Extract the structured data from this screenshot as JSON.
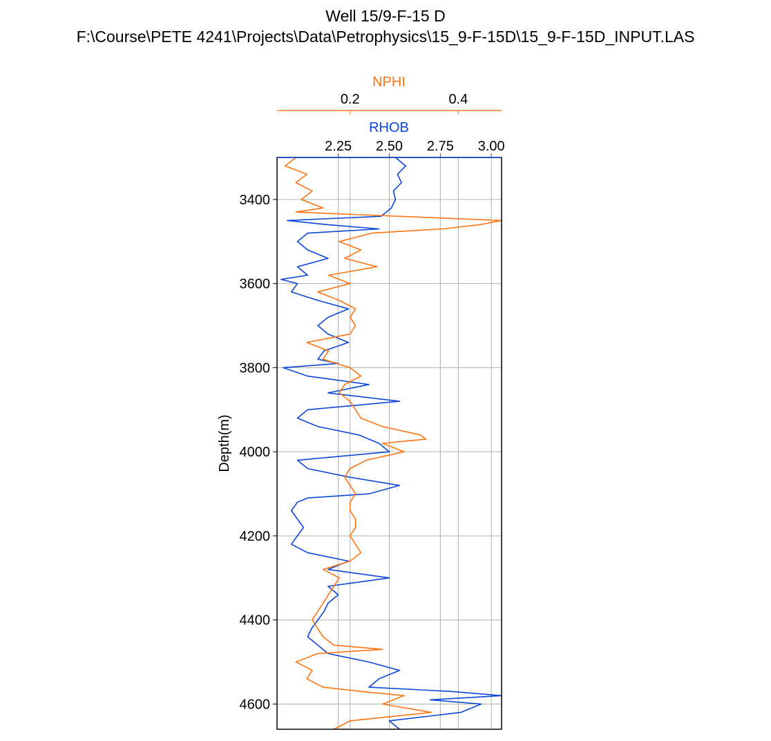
{
  "chart_data": {
    "type": "line",
    "title": "Well 15/9-F-15 D",
    "subtitle": "F:\\Course\\PETE 4241\\Projects\\Data\\Petrophysics\\15_9-F-15D\\15_9-F-15D_INPUT.LAS",
    "ylabel": "Depth(m)",
    "y_inverted": true,
    "ylim": [
      4660,
      3300
    ],
    "yticks": [
      3400,
      3600,
      3800,
      4000,
      4200,
      4400,
      4600
    ],
    "ytick_labels": [
      "3400",
      "3600",
      "3800",
      "4000",
      "4200",
      "4400",
      "4600"
    ],
    "grid": true,
    "axes": [
      {
        "name": "RHOB",
        "label": "RHOB",
        "color": "#0a47d9",
        "xlim": [
          1.95,
          3.05
        ],
        "xticks": [
          2.25,
          2.5,
          2.75,
          3.0
        ],
        "xtick_labels": [
          "2.25",
          "2.50",
          "2.75",
          "3.00"
        ]
      },
      {
        "name": "NPHI",
        "label": "NPHI",
        "color": "#ff7412",
        "xlim": [
          0.065,
          0.48
        ],
        "xticks": [
          0.2,
          0.4
        ],
        "xtick_labels": [
          "0.2",
          "0.4"
        ]
      }
    ],
    "series": [
      {
        "name": "RHOB",
        "axis": "RHOB",
        "color": "#0a47d9",
        "points": [
          [
            3300,
            2.53
          ],
          [
            3320,
            2.58
          ],
          [
            3340,
            2.54
          ],
          [
            3360,
            2.56
          ],
          [
            3380,
            2.52
          ],
          [
            3400,
            2.53
          ],
          [
            3420,
            2.51
          ],
          [
            3440,
            2.46
          ],
          [
            3450,
            2.0
          ],
          [
            3460,
            2.2
          ],
          [
            3470,
            2.45
          ],
          [
            3480,
            2.1
          ],
          [
            3500,
            2.05
          ],
          [
            3520,
            2.1
          ],
          [
            3540,
            2.2
          ],
          [
            3560,
            2.05
          ],
          [
            3580,
            2.1
          ],
          [
            3590,
            1.97
          ],
          [
            3600,
            2.05
          ],
          [
            3620,
            2.02
          ],
          [
            3640,
            2.15
          ],
          [
            3660,
            2.3
          ],
          [
            3680,
            2.2
          ],
          [
            3700,
            2.15
          ],
          [
            3720,
            2.2
          ],
          [
            3740,
            2.3
          ],
          [
            3760,
            2.18
          ],
          [
            3780,
            2.15
          ],
          [
            3790,
            2.25
          ],
          [
            3800,
            1.98
          ],
          [
            3820,
            2.1
          ],
          [
            3840,
            2.4
          ],
          [
            3860,
            2.2
          ],
          [
            3880,
            2.55
          ],
          [
            3900,
            2.1
          ],
          [
            3920,
            2.05
          ],
          [
            3940,
            2.15
          ],
          [
            3960,
            2.35
          ],
          [
            3980,
            2.45
          ],
          [
            4000,
            2.5
          ],
          [
            4020,
            2.05
          ],
          [
            4040,
            2.1
          ],
          [
            4060,
            2.3
          ],
          [
            4080,
            2.55
          ],
          [
            4100,
            2.4
          ],
          [
            4110,
            2.1
          ],
          [
            4120,
            2.05
          ],
          [
            4140,
            2.02
          ],
          [
            4160,
            2.05
          ],
          [
            4180,
            2.08
          ],
          [
            4200,
            2.05
          ],
          [
            4220,
            2.02
          ],
          [
            4240,
            2.1
          ],
          [
            4260,
            2.3
          ],
          [
            4280,
            2.2
          ],
          [
            4300,
            2.5
          ],
          [
            4320,
            2.2
          ],
          [
            4340,
            2.25
          ],
          [
            4360,
            2.2
          ],
          [
            4380,
            2.18
          ],
          [
            4400,
            2.15
          ],
          [
            4420,
            2.12
          ],
          [
            4440,
            2.1
          ],
          [
            4460,
            2.15
          ],
          [
            4480,
            2.2
          ],
          [
            4500,
            2.4
          ],
          [
            4520,
            2.55
          ],
          [
            4540,
            2.45
          ],
          [
            4560,
            2.4
          ],
          [
            4570,
            2.8
          ],
          [
            4580,
            3.05
          ],
          [
            4590,
            2.7
          ],
          [
            4600,
            2.95
          ],
          [
            4620,
            2.85
          ],
          [
            4640,
            2.5
          ],
          [
            4660,
            2.55
          ]
        ]
      },
      {
        "name": "NPHI",
        "axis": "NPHI",
        "color": "#ff7412",
        "points": [
          [
            3300,
            0.1
          ],
          [
            3320,
            0.08
          ],
          [
            3340,
            0.12
          ],
          [
            3360,
            0.1
          ],
          [
            3380,
            0.13
          ],
          [
            3400,
            0.11
          ],
          [
            3420,
            0.15
          ],
          [
            3430,
            0.1
          ],
          [
            3450,
            0.48
          ],
          [
            3460,
            0.44
          ],
          [
            3470,
            0.37
          ],
          [
            3480,
            0.24
          ],
          [
            3500,
            0.18
          ],
          [
            3520,
            0.22
          ],
          [
            3540,
            0.19
          ],
          [
            3560,
            0.25
          ],
          [
            3580,
            0.16
          ],
          [
            3600,
            0.2
          ],
          [
            3620,
            0.14
          ],
          [
            3640,
            0.18
          ],
          [
            3660,
            0.21
          ],
          [
            3680,
            0.2
          ],
          [
            3700,
            0.21
          ],
          [
            3720,
            0.2
          ],
          [
            3740,
            0.12
          ],
          [
            3760,
            0.16
          ],
          [
            3780,
            0.15
          ],
          [
            3800,
            0.2
          ],
          [
            3820,
            0.22
          ],
          [
            3840,
            0.19
          ],
          [
            3860,
            0.18
          ],
          [
            3880,
            0.2
          ],
          [
            3900,
            0.21
          ],
          [
            3920,
            0.22
          ],
          [
            3940,
            0.26
          ],
          [
            3960,
            0.33
          ],
          [
            3970,
            0.34
          ],
          [
            3980,
            0.26
          ],
          [
            4000,
            0.3
          ],
          [
            4020,
            0.23
          ],
          [
            4040,
            0.2
          ],
          [
            4060,
            0.19
          ],
          [
            4080,
            0.2
          ],
          [
            4100,
            0.21
          ],
          [
            4120,
            0.2
          ],
          [
            4140,
            0.2
          ],
          [
            4160,
            0.21
          ],
          [
            4180,
            0.21
          ],
          [
            4200,
            0.2
          ],
          [
            4220,
            0.21
          ],
          [
            4240,
            0.22
          ],
          [
            4260,
            0.2
          ],
          [
            4280,
            0.15
          ],
          [
            4300,
            0.18
          ],
          [
            4320,
            0.17
          ],
          [
            4340,
            0.16
          ],
          [
            4360,
            0.15
          ],
          [
            4380,
            0.14
          ],
          [
            4400,
            0.13
          ],
          [
            4420,
            0.14
          ],
          [
            4440,
            0.15
          ],
          [
            4460,
            0.17
          ],
          [
            4470,
            0.26
          ],
          [
            4480,
            0.14
          ],
          [
            4500,
            0.1
          ],
          [
            4520,
            0.13
          ],
          [
            4540,
            0.12
          ],
          [
            4560,
            0.15
          ],
          [
            4570,
            0.22
          ],
          [
            4580,
            0.3
          ],
          [
            4600,
            0.26
          ],
          [
            4620,
            0.35
          ],
          [
            4640,
            0.2
          ],
          [
            4660,
            0.17
          ]
        ]
      }
    ]
  }
}
